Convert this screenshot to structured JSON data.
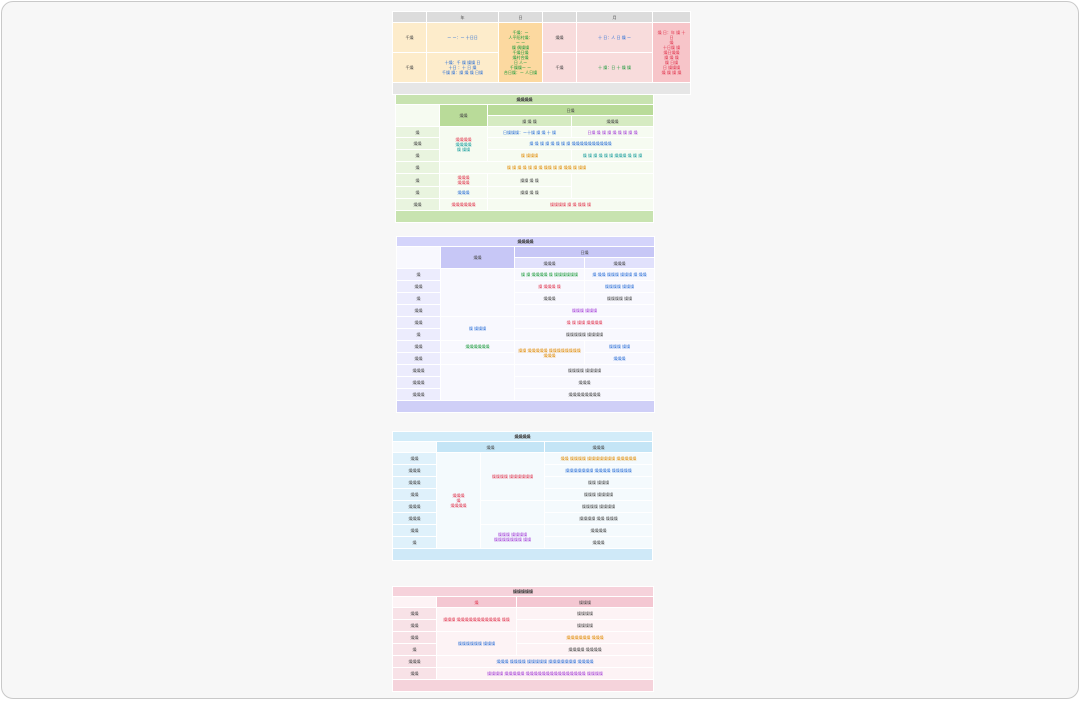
{
  "t1": {
    "headers": [
      "",
      "年",
      "日",
      "",
      "月",
      "",
      ""
    ],
    "row1": {
      "label": "千燥",
      "c1": "ー ー：ー 十日日",
      "c2a": "千燥：ー\n人平阳村燥：\nー ー\n燥 偶燥燥\n千燥日燥\n燥村合燥\n日 人ー\n千燥燥ー ー\n合日燥：ー 人日燥",
      "c3": "燥燥",
      "c4": "十 日：人 日 燥 ー",
      "c5": "燥 日：年 燥 十 日\n燥\n十日燥 燥\n燥日燥燥\n燥 燥 燥\n燥 日燥\n日 燥燥燥\n燥 燥 燥 燥"
    },
    "row2": {
      "label": "千燥",
      "c1": "十燥：千 燥 燥燥 日\n十日 ：十 日 燥\n千燥 燥：燥 燥 燥 日燥",
      "c3": "千燥",
      "c4": "十 燥：日 十 燥 燥"
    }
  },
  "t2": {
    "title": "燥燥燥燥",
    "h_left": "燥燥",
    "h_right": "日燥",
    "h_sub1": "燥 燥 燥",
    "h_sub2": "燥燥燥",
    "rows": [
      {
        "label": "燥",
        "left": "",
        "a": "日燥燥燥：ー十燥 燥 燥 十 燥",
        "b": "日燥 燥 燥 燥 燥 燥 燥 燥 燥"
      },
      {
        "label": "燥燥",
        "left": "燥燥燥燥",
        "ab": "燥 燥 燥 燥 燥 燥 燥 燥 燥燥燥燥燥燥燥燥燥燥"
      },
      {
        "label": "燥",
        "left": "燥燥燥燥\n燥 燥燥",
        "a": "燥 燥燥燥",
        "b": "燥 燥 燥 燥 燥 燥 燥燥燥 燥 燥 燥"
      },
      {
        "label": "燥",
        "left": "",
        "ab": "燥 燥 燥 燥 燥 燥 燥 燥燥 燥 燥 燥燥 燥 燥燥"
      },
      {
        "label": "燥",
        "left": "燥燥燥\n燥燥燥",
        "a": "燥燥 燥 燥",
        "b": ""
      },
      {
        "label": "燥",
        "left": "燥燥燥",
        "a": "燥燥 燥 燥",
        "b": ""
      },
      {
        "label": "燥燥",
        "left": "燥燥燥燥燥燥",
        "ab": "燥燥燥燥 燥 燥 燥燥 燥"
      }
    ]
  },
  "t3": {
    "title": "燥燥燥燥",
    "h_left": "燥燥",
    "h_right": "日燥",
    "h_sub1": "燥燥燥",
    "h_sub2": "燥燥燥",
    "rows": [
      {
        "label": "燥",
        "a": "燥 燥 燥燥燥燥 燥 燥燥燥燥燥燥",
        "b": "燥 燥燥 燥燥燥 燥燥燥 燥 燥燥"
      },
      {
        "label": "燥燥",
        "a": "燥 燥燥燥 燥",
        "b": "燥燥燥燥 燥燥燥"
      },
      {
        "label": "燥",
        "a": "燥燥燥",
        "b": "燥燥燥燥 燥燥"
      },
      {
        "label": "燥燥",
        "ab": "燥燥燥 燥燥燥"
      },
      {
        "label": "燥燥",
        "left": "燥 燥燥燥",
        "a": "燥 燥 燥燥 燥燥燥燥"
      },
      {
        "label": "燥",
        "a": "燥燥燥燥燥 燥燥燥燥"
      },
      {
        "label": "燥燥",
        "left": "燥燥燥燥燥燥",
        "ab": "燥燥 燥燥燥燥燥 燥燥燥燥燥燥燥燥燥燥燥",
        "b": "燥燥燥 燥燥"
      },
      {
        "label": "燥燥",
        "b": "燥燥燥"
      },
      {
        "label": "燥燥燥",
        "ab": "燥燥燥燥 燥燥燥燥"
      },
      {
        "label": "燥燥燥",
        "ab": "燥燥燥"
      },
      {
        "label": "燥燥燥",
        "ab": "燥燥燥燥燥燥燥燥"
      }
    ]
  },
  "t4": {
    "title": "燥燥燥燥",
    "h_left": "燥燥",
    "h_right": "燥燥燥",
    "left_merged": "燥燥燥\n燥\n燥燥燥燥",
    "mid_merged": "燥燥燥燥 燥燥燥燥燥燥",
    "rows": [
      {
        "label": "燥燥",
        "b": "燥燥 燥燥燥燥 燥燥燥燥燥燥燥 燥燥燥燥燥"
      },
      {
        "label": "燥燥燥",
        "b": "燥燥燥燥燥燥燥 燥燥燥燥 燥燥燥燥燥"
      },
      {
        "label": "燥燥燥",
        "b": "燥燥 燥燥燥"
      },
      {
        "label": "燥燥",
        "b": "燥燥燥 燥燥燥燥"
      },
      {
        "label": "燥燥燥",
        "b": "燥燥燥燥 燥燥燥燥"
      },
      {
        "label": "燥燥燥",
        "b": "燥燥燥燥 燥燥 燥燥燥"
      },
      {
        "label": "燥燥",
        "mid": "燥燥燥 燥燥燥燥\n燥燥燥燥燥燥燥 燥燥",
        "b": "燥燥燥燥"
      },
      {
        "label": "燥",
        "b": "燥燥燥"
      }
    ]
  },
  "t5": {
    "title": "燥燥燥燥燥",
    "h_left": "燥",
    "h_right": "燥燥燥",
    "rows": [
      {
        "label": "燥燥",
        "a": "燥燥燥 燥燥燥燥燥燥燥燥燥燥燥 燥燥",
        "b": "燥燥燥燥"
      },
      {
        "label": "燥燥",
        "b": "燥燥燥燥"
      },
      {
        "label": "燥燥",
        "a": "燥燥燥燥燥燥 燥燥燥",
        "b": "燥燥燥燥燥燥 燥燥燥"
      },
      {
        "label": "燥",
        "b": "燥燥燥燥 燥燥燥燥"
      },
      {
        "label": "燥燥燥",
        "ab": "燥燥燥 燥燥燥燥 燥燥燥燥燥 燥燥燥燥燥燥燥 燥燥燥燥"
      },
      {
        "label": "燥燥",
        "ab": "燥燥燥燥 燥燥燥燥燥 燥燥燥燥燥燥燥燥燥燥燥燥燥燥燥 燥燥燥燥"
      }
    ]
  }
}
